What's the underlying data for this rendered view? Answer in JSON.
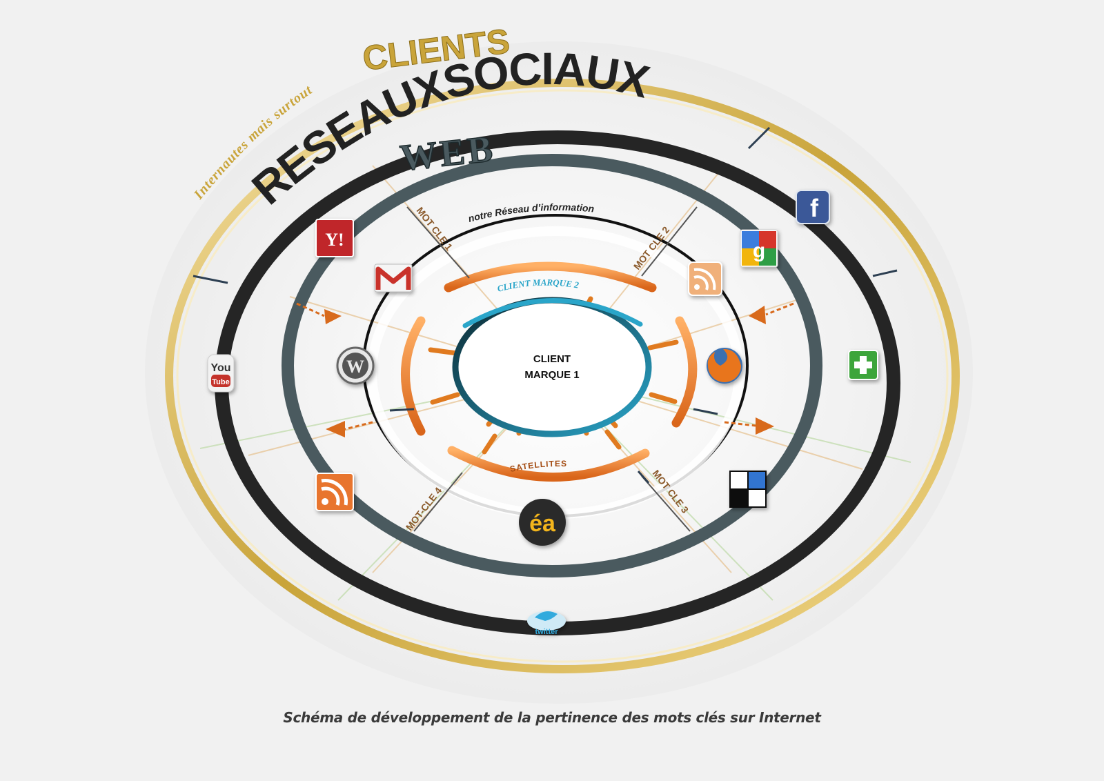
{
  "title": {
    "prefix": "Internautes mais surtout",
    "clients": "CLIENTS"
  },
  "rings": {
    "social": "RESEAUXSOCIAUX",
    "web": "WEB",
    "network": "notre Réseau d’information",
    "brand2": "CLIENT MARQUE 2",
    "satellites": "SATELLITES",
    "center_line1": "CLIENT",
    "center_line2": "MARQUE 1"
  },
  "keywords": {
    "k1": "MOT CLE 1",
    "k2": "MOT CLE 2",
    "k3": "MOT CLE 3",
    "k4": "MOT-CLE 4"
  },
  "icons": {
    "yahoo": "Y!",
    "youtube_top": "You",
    "youtube_bottom": "Tube",
    "wordpress": "W",
    "twitter": "twitter",
    "ea": "éa",
    "google": "g",
    "facebook": "f",
    "plus": "+"
  },
  "caption": "Schéma de développement de la pertinence des mots clés sur Internet",
  "colors": {
    "gold": "#c9a43a",
    "dark_ring": "#252525",
    "slate_ring": "#4a5a5f",
    "orange": "#e07a1f",
    "teal": "#2aa5c9"
  }
}
